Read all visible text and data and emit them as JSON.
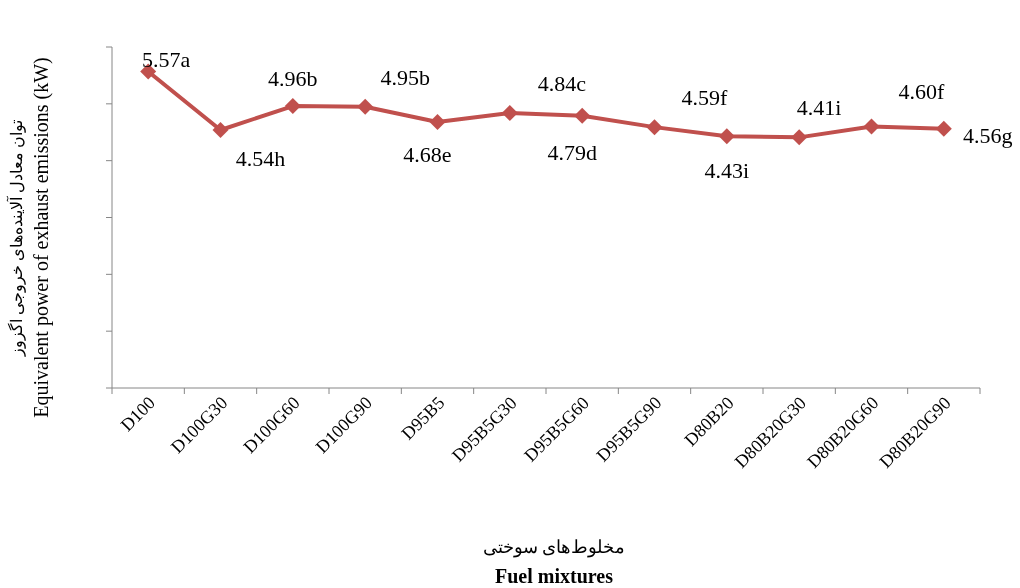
{
  "chart_data": {
    "type": "line",
    "categories": [
      "D100",
      "D100G30",
      "D100G60",
      "D100G90",
      "D95B5",
      "D95B5G30",
      "D95B5G60",
      "D95B5G90",
      "D80B20",
      "D80B20G30",
      "D80B20G60",
      "D80B20G90"
    ],
    "series": [
      {
        "color": "#c0504d",
        "values": [
          5.57,
          4.54,
          4.96,
          4.95,
          4.68,
          4.84,
          4.79,
          4.59,
          4.43,
          4.41,
          4.6,
          4.56
        ],
        "value_labels": [
          "5.57a",
          "4.54h",
          "4.96b",
          "4.95b",
          "4.68e",
          "4.84c",
          "4.79d",
          "4.59f",
          "4.43i",
          "4.41i",
          "4.60f",
          "4.56g"
        ]
      }
    ],
    "ylim": [
      0,
      6
    ],
    "yticks": [
      {
        "value": 0,
        "label": null
      },
      {
        "value": 1,
        "label": null
      },
      {
        "value": 2,
        "label": null
      },
      {
        "value": 3,
        "label": null
      },
      {
        "value": 4,
        "label": null
      },
      {
        "value": 5,
        "label": null
      },
      {
        "value": 6,
        "label": null
      }
    ],
    "tick_labels": "x",
    "marker": "diamond",
    "line_style": "solid",
    "ylabel": "توان معادل آلاینده‌های خروجی اگزوز\nEquivalent power of exhaust emissions (kW)",
    "xlabel": "مخلوط‌های سوختی\nFuel mixtures"
  }
}
